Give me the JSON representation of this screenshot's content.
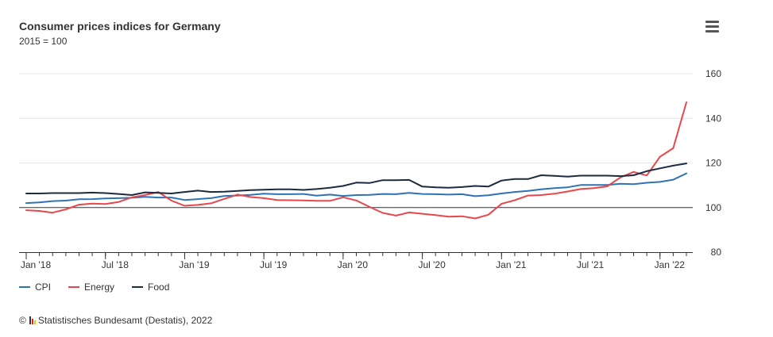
{
  "header": {
    "title": "Consumer prices indices for Germany",
    "subtitle": "2015 = 100"
  },
  "menu": {
    "icon": "hamburger-menu-icon"
  },
  "credits": {
    "symbol": "©",
    "text": "Statistisches Bundesamt (Destatis), 2022",
    "logo_colors": [
      "#333333",
      "#e8202a",
      "#f5c400"
    ]
  },
  "chart_data": {
    "type": "line",
    "title": "Consumer prices indices for Germany",
    "subtitle": "2015 = 100",
    "ylim": [
      80,
      160
    ],
    "yticks": [
      80,
      100,
      120,
      140,
      160
    ],
    "y_labels": [
      "80",
      "100",
      "120",
      "140",
      "160"
    ],
    "reference_line": 100,
    "x_tick_labels": [
      "Jan '18",
      "Jul '18",
      "Jan '19",
      "Jul '19",
      "Jan '20",
      "Jul '20",
      "Jan '21",
      "Jul '21",
      "Jan '22"
    ],
    "x_tick_index": [
      0,
      6,
      12,
      18,
      24,
      30,
      36,
      42,
      48
    ],
    "x_count": 51,
    "grid": true,
    "legend_position": "bottom-left",
    "series": [
      {
        "name": "CPI",
        "color": "#2e73b5",
        "values": [
          102.0,
          102.3,
          102.9,
          103.1,
          103.7,
          103.8,
          104.1,
          104.2,
          104.4,
          104.8,
          104.5,
          104.5,
          103.4,
          103.8,
          104.2,
          105.2,
          105.4,
          105.7,
          106.2,
          106.0,
          106.0,
          106.1,
          105.3,
          105.8,
          105.2,
          105.6,
          105.7,
          106.1,
          106.0,
          106.6,
          106.1,
          106.0,
          105.8,
          106.0,
          105.1,
          105.5,
          106.3,
          107.0,
          107.5,
          108.2,
          108.7,
          109.1,
          110.1,
          110.1,
          110.1,
          110.7,
          110.5,
          111.1,
          111.5,
          112.5,
          115.3
        ]
      },
      {
        "name": "Energy",
        "color": "#e8474c",
        "values": [
          98.8,
          98.5,
          97.7,
          99.2,
          101.3,
          101.8,
          101.6,
          102.5,
          104.6,
          105.6,
          107.0,
          103.1,
          100.8,
          101.2,
          101.9,
          103.9,
          105.8,
          104.7,
          104.2,
          103.4,
          103.3,
          103.2,
          103.0,
          103.0,
          104.6,
          103.2,
          100.3,
          97.6,
          96.4,
          97.8,
          97.2,
          96.6,
          95.9,
          96.1,
          95.1,
          96.8,
          101.7,
          103.3,
          105.4,
          105.6,
          106.2,
          107.2,
          108.3,
          108.7,
          109.5,
          113.5,
          116.0,
          114.4,
          122.8,
          126.6,
          147.2
        ]
      },
      {
        "name": "Food",
        "color": "#1c2b3f",
        "values": [
          106.3,
          106.3,
          106.5,
          106.5,
          106.5,
          106.7,
          106.5,
          106.1,
          105.6,
          106.8,
          106.6,
          106.3,
          107.0,
          107.6,
          107.0,
          107.1,
          107.5,
          107.8,
          108.0,
          108.2,
          108.2,
          107.9,
          108.3,
          108.9,
          109.7,
          111.2,
          111.0,
          112.3,
          112.3,
          112.4,
          109.4,
          109.1,
          108.9,
          109.2,
          109.7,
          109.4,
          112.1,
          112.8,
          112.8,
          114.5,
          114.2,
          113.9,
          114.3,
          114.3,
          114.3,
          114.1,
          114.5,
          116.3,
          117.6,
          118.8,
          119.8
        ]
      }
    ]
  }
}
